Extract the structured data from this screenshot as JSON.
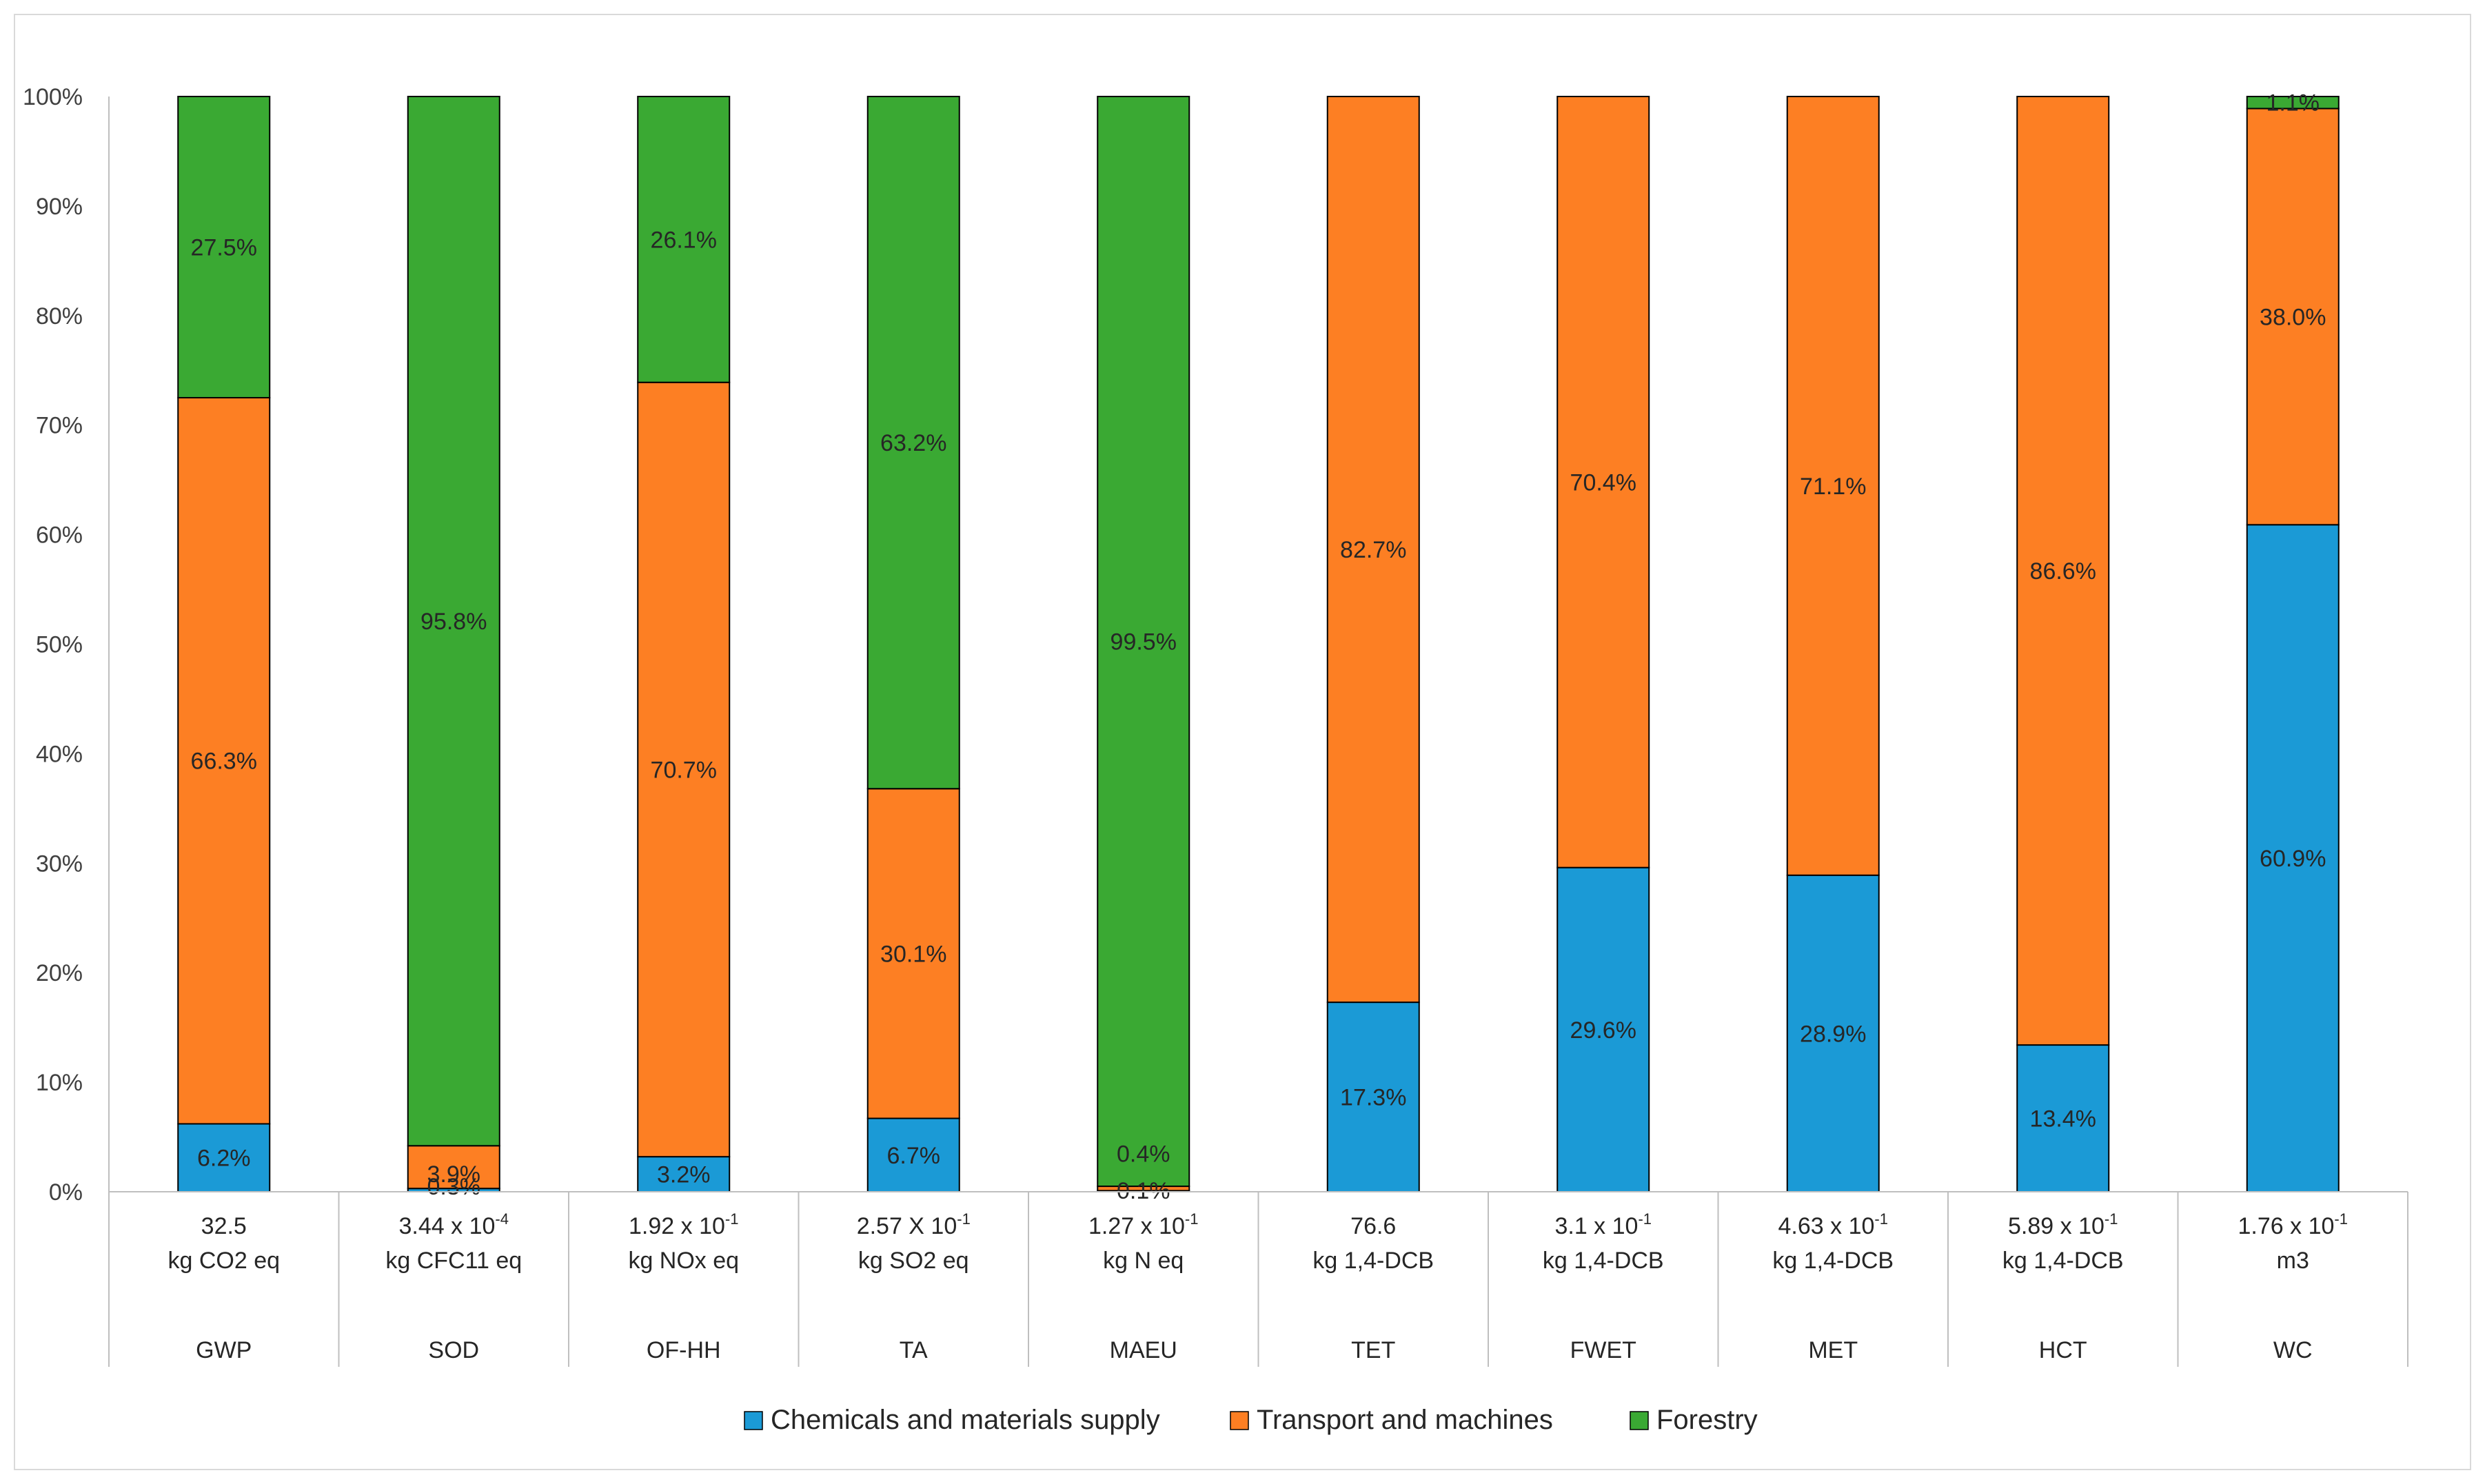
{
  "chart_data": {
    "type": "bar",
    "stacked": true,
    "percent": true,
    "ylim": [
      0,
      100
    ],
    "yticks": [
      "0%",
      "10%",
      "20%",
      "30%",
      "40%",
      "50%",
      "60%",
      "70%",
      "80%",
      "90%",
      "100%"
    ],
    "categories": [
      "GWP",
      "SOD",
      "OF-HH",
      "TA",
      "MAEU",
      "TET",
      "FWET",
      "MET",
      "HCT",
      "WC"
    ],
    "category_values": [
      {
        "base": "32.5",
        "exp": "",
        "unit": "kg CO2 eq"
      },
      {
        "base": "3.44 x 10",
        "exp": "-4",
        "unit": "kg CFC11 eq"
      },
      {
        "base": "1.92 x 10",
        "exp": "-1",
        "unit": "kg NOx eq"
      },
      {
        "base": "2.57 X 10",
        "exp": "-1",
        "unit": "kg SO2 eq"
      },
      {
        "base": "1.27 x 10",
        "exp": "-1",
        "unit": "kg N eq"
      },
      {
        "base": "76.6",
        "exp": "",
        "unit": "kg 1,4-DCB"
      },
      {
        "base": "3.1 x 10",
        "exp": "-1",
        "unit": "kg 1,4-DCB"
      },
      {
        "base": "4.63 x 10",
        "exp": "-1",
        "unit": "kg 1,4-DCB"
      },
      {
        "base": "5.89 x 10",
        "exp": "-1",
        "unit": "kg 1,4-DCB"
      },
      {
        "base": "1.76 x 10",
        "exp": "-1",
        "unit": "m3"
      }
    ],
    "series": [
      {
        "name": "Chemicals and materials supply",
        "color": "#1b9ad6",
        "values": [
          6.2,
          0.3,
          3.2,
          6.7,
          0.1,
          17.3,
          29.6,
          28.9,
          13.4,
          60.9
        ],
        "labels": [
          "6.2%",
          "0.3%",
          "3.2%",
          "6.7%",
          "0.1%",
          "17.3%",
          "29.6%",
          "28.9%",
          "13.4%",
          "60.9%"
        ]
      },
      {
        "name": "Transport and machines",
        "color": "#fd7f23",
        "values": [
          66.3,
          3.9,
          70.7,
          30.1,
          0.4,
          82.7,
          70.4,
          71.1,
          86.6,
          38.0
        ],
        "labels": [
          "66.3%",
          "3.9%",
          "70.7%",
          "30.1%",
          "0.4%",
          "82.7%",
          "70.4%",
          "71.1%",
          "86.6%",
          "38.0%"
        ]
      },
      {
        "name": "Forestry",
        "color": "#3aa933",
        "values": [
          27.5,
          95.8,
          26.1,
          63.2,
          99.5,
          0,
          0,
          0,
          0,
          1.1
        ],
        "labels": [
          "27.5%",
          "95.8%",
          "26.1%",
          "63.2%",
          "99.5%",
          "",
          "",
          "",
          "",
          "1.1%"
        ]
      }
    ],
    "legend_position": "bottom"
  }
}
